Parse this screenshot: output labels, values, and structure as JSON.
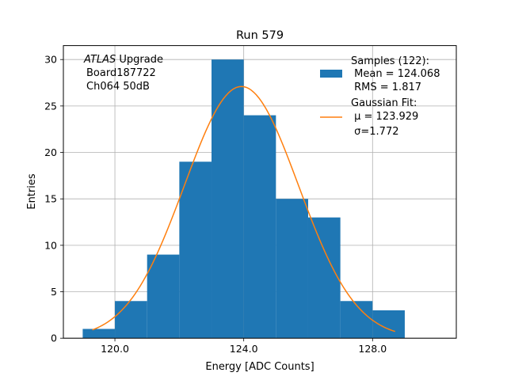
{
  "chart_data": {
    "type": "bar",
    "title": "Run 579",
    "xlabel": "Energy [ADC Counts]",
    "ylabel": "Entries",
    "xlim": [
      118.4,
      130.6
    ],
    "ylim": [
      0,
      31.5
    ],
    "grid": true,
    "xticks": [
      120.0,
      124.0,
      128.0
    ],
    "xtick_labels": [
      "120.0",
      "124.0",
      "128.0"
    ],
    "yticks": [
      0,
      5,
      10,
      15,
      20,
      25,
      30
    ],
    "ytick_labels": [
      "0",
      "5",
      "10",
      "15",
      "20",
      "25",
      "30"
    ],
    "bins": [
      {
        "x0": 119,
        "x1": 120,
        "count": 1
      },
      {
        "x0": 120,
        "x1": 121,
        "count": 4
      },
      {
        "x0": 121,
        "x1": 122,
        "count": 9
      },
      {
        "x0": 122,
        "x1": 123,
        "count": 19
      },
      {
        "x0": 123,
        "x1": 124,
        "count": 30
      },
      {
        "x0": 124,
        "x1": 125,
        "count": 24
      },
      {
        "x0": 125,
        "x1": 126,
        "count": 15
      },
      {
        "x0": 126,
        "x1": 127,
        "count": 13
      },
      {
        "x0": 127,
        "x1": 128,
        "count": 4
      },
      {
        "x0": 128,
        "x1": 129,
        "count": 3
      }
    ],
    "fit": {
      "mu": 123.929,
      "sigma": 1.772,
      "amplitude": 27.1,
      "x_range": [
        119.3,
        128.7
      ]
    },
    "colors": {
      "bars": "#1f77b4",
      "fit": "#ff7f0e",
      "grid": "#b0b0b0"
    },
    "annotation": {
      "atlas": "ATLAS",
      "line1_rest": " Upgrade",
      "line2": "Board187722",
      "line3": "Ch064 50dB"
    },
    "legend": {
      "placement": "top-right",
      "samples": {
        "title": "Samples (122):",
        "mean": " Mean = 124.068",
        "rms": " RMS = 1.817"
      },
      "fit": {
        "title": "Gaussian Fit:",
        "mu": " μ = 123.929",
        "sigma": " σ=1.772"
      }
    }
  }
}
